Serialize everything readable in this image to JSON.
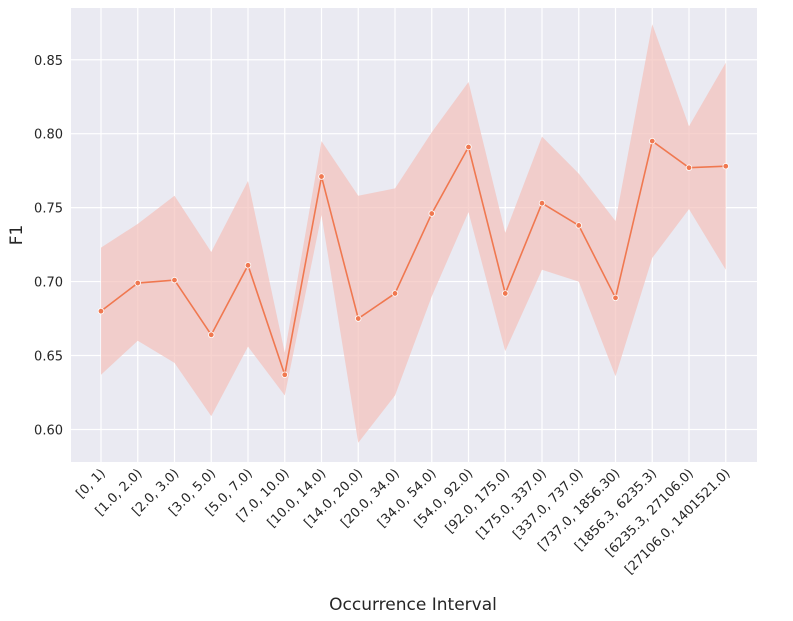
{
  "chart_data": {
    "type": "line",
    "title": "",
    "xlabel": "Occurrence Interval",
    "ylabel": "F1",
    "ylim": [
      0.578,
      0.885
    ],
    "yticks": [
      0.6,
      0.65,
      0.7,
      0.75,
      0.8,
      0.85
    ],
    "ytick_labels": [
      "0.60",
      "0.65",
      "0.70",
      "0.75",
      "0.80",
      "0.85"
    ],
    "grid": true,
    "categories": [
      "[0, 1)",
      "[1.0, 2.0)",
      "[2.0, 3.0)",
      "[3.0, 5.0)",
      "[5.0, 7.0)",
      "[7.0, 10.0)",
      "[10.0, 14.0)",
      "[14.0, 20.0)",
      "[20.0, 34.0)",
      "[34.0, 54.0)",
      "[54.0, 92.0)",
      "[92.0, 175.0)",
      "[175.0, 337.0)",
      "[337.0, 737.0)",
      "[737.0, 1856.30)",
      "[1856.3, 6235.3)",
      "[6235.3, 27106.0)",
      "[27106.0, 1401521.0)"
    ],
    "series": [
      {
        "values": [
          0.68,
          0.699,
          0.701,
          0.664,
          0.711,
          0.637,
          0.771,
          0.675,
          0.692,
          0.746,
          0.791,
          0.692,
          0.753,
          0.738,
          0.689,
          0.795,
          0.777,
          0.778
        ],
        "ci_lower": [
          0.637,
          0.66,
          0.645,
          0.609,
          0.656,
          0.623,
          0.745,
          0.591,
          0.623,
          0.69,
          0.747,
          0.653,
          0.708,
          0.7,
          0.636,
          0.716,
          0.749,
          0.708
        ],
        "ci_upper": [
          0.723,
          0.739,
          0.758,
          0.72,
          0.768,
          0.652,
          0.795,
          0.758,
          0.763,
          0.801,
          0.835,
          0.733,
          0.798,
          0.773,
          0.741,
          0.874,
          0.805,
          0.848
        ]
      }
    ],
    "colors": {
      "background": "#eaeaf2",
      "grid": "#ffffff",
      "line": "#f07850",
      "band": "#f4c0ba",
      "marker_edge": "#ffffff"
    }
  }
}
